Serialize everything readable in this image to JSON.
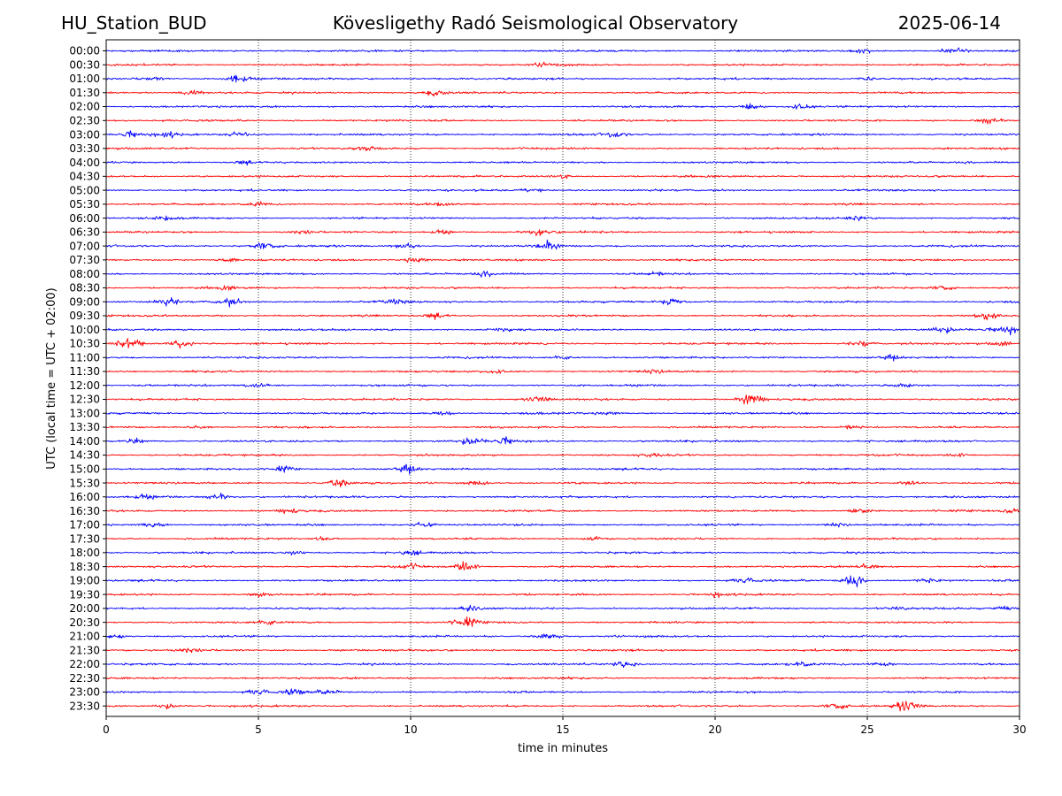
{
  "header": {
    "station": "HU_Station_BUD",
    "observatory": "Kövesligethy Radó Seismological Observatory",
    "date": "2025-06-14"
  },
  "chart_data": {
    "type": "line",
    "title": "Kövesligethy Radó Seismological Observatory",
    "xlabel": "time in minutes",
    "ylabel": "UTC (local time = UTC + 02:00)",
    "xlim": [
      0,
      30
    ],
    "x_ticks": [
      0,
      5,
      10,
      15,
      20,
      25,
      30
    ],
    "grid": "vertical dotted at major x ticks",
    "colors": {
      "even_hour_trace": "#0000ff",
      "half_hour_trace": "#ff0000"
    },
    "rows": [
      {
        "label": "00:00",
        "events": [
          [
            24.8,
            0.8
          ],
          [
            27.8,
            0.7
          ]
        ]
      },
      {
        "label": "00:30",
        "events": [
          [
            14.5,
            0.6
          ]
        ]
      },
      {
        "label": "01:00",
        "events": [
          [
            4.3,
            1.6
          ],
          [
            1.5,
            0.6
          ],
          [
            25.0,
            0.5
          ]
        ]
      },
      {
        "label": "01:30",
        "events": [
          [
            2.8,
            0.9
          ],
          [
            10.8,
            0.7
          ]
        ]
      },
      {
        "label": "02:00",
        "events": [
          [
            21.2,
            0.9
          ],
          [
            22.8,
            1.0
          ]
        ]
      },
      {
        "label": "02:30",
        "events": [
          [
            29.0,
            0.9
          ]
        ]
      },
      {
        "label": "03:00",
        "events": [
          [
            0.9,
            0.9
          ],
          [
            2.0,
            0.6
          ],
          [
            4.4,
            0.9
          ],
          [
            16.7,
            0.9
          ]
        ]
      },
      {
        "label": "03:30",
        "events": [
          [
            8.5,
            0.5
          ]
        ]
      },
      {
        "label": "04:00",
        "events": [
          [
            4.5,
            0.5
          ]
        ]
      },
      {
        "label": "04:30",
        "events": [
          [
            15.0,
            0.6
          ]
        ]
      },
      {
        "label": "05:00",
        "events": [
          [
            14.0,
            0.5
          ]
        ]
      },
      {
        "label": "05:30",
        "events": [
          [
            5.0,
            0.5
          ],
          [
            11.0,
            0.5
          ]
        ]
      },
      {
        "label": "06:00",
        "events": [
          [
            24.5,
            0.9
          ],
          [
            2.0,
            0.6
          ]
        ]
      },
      {
        "label": "06:30",
        "events": [
          [
            14.2,
            0.9
          ],
          [
            11.0,
            0.6
          ],
          [
            6.5,
            0.6
          ]
        ]
      },
      {
        "label": "07:00",
        "events": [
          [
            5.2,
            1.0
          ],
          [
            14.5,
            1.2
          ],
          [
            9.8,
            0.8
          ]
        ]
      },
      {
        "label": "07:30",
        "events": [
          [
            10.2,
            0.9
          ],
          [
            4.0,
            0.5
          ]
        ]
      },
      {
        "label": "08:00",
        "events": [
          [
            12.5,
            0.6
          ],
          [
            18.0,
            0.5
          ]
        ]
      },
      {
        "label": "08:30",
        "events": [
          [
            27.5,
            0.7
          ],
          [
            4.0,
            0.5
          ]
        ]
      },
      {
        "label": "09:00",
        "events": [
          [
            2.0,
            1.0
          ],
          [
            4.0,
            1.1
          ],
          [
            18.5,
            1.2
          ],
          [
            9.5,
            0.7
          ]
        ]
      },
      {
        "label": "09:30",
        "events": [
          [
            29.0,
            1.0
          ],
          [
            10.8,
            0.7
          ]
        ]
      },
      {
        "label": "10:00",
        "events": [
          [
            29.5,
            1.4
          ],
          [
            27.5,
            0.8
          ],
          [
            13.0,
            0.6
          ]
        ]
      },
      {
        "label": "10:30",
        "events": [
          [
            0.8,
            1.5
          ],
          [
            2.5,
            1.4
          ],
          [
            24.8,
            1.0
          ],
          [
            29.4,
            0.8
          ]
        ]
      },
      {
        "label": "11:00",
        "events": [
          [
            15.0,
            0.6
          ],
          [
            25.8,
            0.6
          ]
        ]
      },
      {
        "label": "11:30",
        "events": [
          [
            12.8,
            0.7
          ],
          [
            18.0,
            0.5
          ]
        ]
      },
      {
        "label": "12:00",
        "events": [
          [
            5.0,
            0.7
          ],
          [
            26.2,
            0.6
          ]
        ]
      },
      {
        "label": "12:30",
        "events": [
          [
            21.2,
            1.9
          ],
          [
            14.2,
            0.9
          ]
        ]
      },
      {
        "label": "13:00",
        "events": [
          [
            11.0,
            0.7
          ],
          [
            16.5,
            0.5
          ]
        ]
      },
      {
        "label": "13:30",
        "events": [
          [
            24.5,
            0.6
          ],
          [
            3.0,
            0.5
          ]
        ]
      },
      {
        "label": "14:00",
        "events": [
          [
            12.0,
            1.1
          ],
          [
            13.2,
            1.0
          ],
          [
            1.0,
            0.7
          ]
        ]
      },
      {
        "label": "14:30",
        "events": [
          [
            18.0,
            0.5
          ],
          [
            28.0,
            0.5
          ]
        ]
      },
      {
        "label": "15:00",
        "events": [
          [
            9.9,
            1.1
          ],
          [
            5.8,
            0.8
          ]
        ]
      },
      {
        "label": "15:30",
        "events": [
          [
            7.6,
            1.1
          ],
          [
            12.2,
            0.7
          ],
          [
            26.4,
            0.6
          ]
        ]
      },
      {
        "label": "16:00",
        "events": [
          [
            3.7,
            0.9
          ],
          [
            1.2,
            0.6
          ]
        ]
      },
      {
        "label": "16:30",
        "events": [
          [
            24.8,
            0.9
          ],
          [
            6.0,
            0.7
          ],
          [
            29.8,
            0.6
          ]
        ]
      },
      {
        "label": "17:00",
        "events": [
          [
            1.5,
            0.8
          ],
          [
            10.5,
            0.8
          ],
          [
            24.0,
            0.6
          ]
        ]
      },
      {
        "label": "17:30",
        "events": [
          [
            7.0,
            0.5
          ],
          [
            16.0,
            0.5
          ]
        ]
      },
      {
        "label": "18:00",
        "events": [
          [
            6.2,
            0.7
          ],
          [
            10.0,
            0.7
          ]
        ]
      },
      {
        "label": "18:30",
        "events": [
          [
            11.8,
            1.5
          ],
          [
            25.0,
            0.8
          ],
          [
            10.0,
            0.6
          ]
        ]
      },
      {
        "label": "19:00",
        "events": [
          [
            24.5,
            1.7
          ],
          [
            21.0,
            1.0
          ],
          [
            27.0,
            0.7
          ]
        ]
      },
      {
        "label": "19:30",
        "events": [
          [
            5.0,
            0.6
          ],
          [
            20.0,
            0.5
          ]
        ]
      },
      {
        "label": "20:00",
        "events": [
          [
            29.5,
            0.6
          ],
          [
            12.0,
            0.6
          ],
          [
            26.0,
            0.5
          ]
        ]
      },
      {
        "label": "20:30",
        "events": [
          [
            11.8,
            1.4
          ],
          [
            5.3,
            0.7
          ]
        ]
      },
      {
        "label": "21:00",
        "events": [
          [
            14.5,
            0.9
          ],
          [
            0.3,
            0.6
          ]
        ]
      },
      {
        "label": "21:30",
        "events": [
          [
            2.8,
            0.6
          ]
        ]
      },
      {
        "label": "22:00",
        "events": [
          [
            22.8,
            0.8
          ],
          [
            17.0,
            0.7
          ],
          [
            25.5,
            0.6
          ]
        ]
      },
      {
        "label": "22:30",
        "events": []
      },
      {
        "label": "23:00",
        "events": [
          [
            5.0,
            1.0
          ],
          [
            6.2,
            0.9
          ],
          [
            7.3,
            0.6
          ]
        ]
      },
      {
        "label": "23:30",
        "events": [
          [
            26.3,
            1.6
          ],
          [
            24.0,
            0.9
          ],
          [
            2.0,
            0.7
          ]
        ]
      }
    ]
  }
}
